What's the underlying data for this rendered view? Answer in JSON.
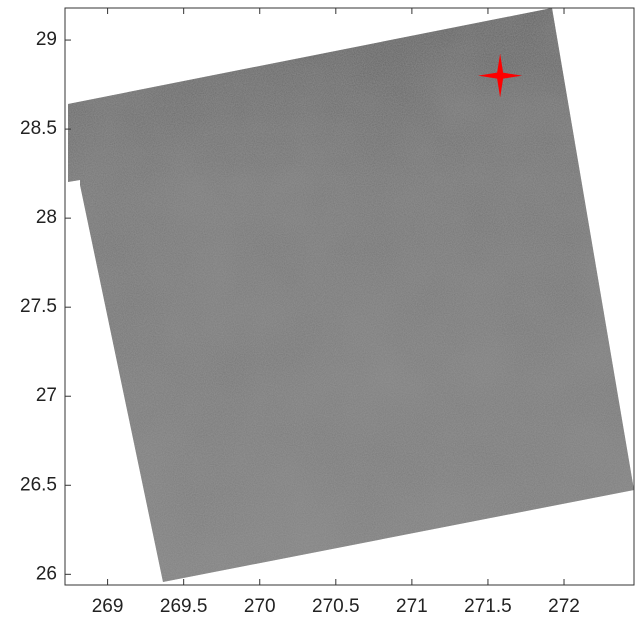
{
  "chart_data": {
    "type": "image",
    "xlim": [
      268.72,
      272.46
    ],
    "ylim": [
      25.94,
      29.18
    ],
    "xticks": [
      269,
      269.5,
      270,
      270.5,
      271,
      271.5,
      272
    ],
    "yticks": [
      26,
      26.5,
      27,
      27.5,
      28,
      28.5,
      29
    ],
    "marker": {
      "x": 271.58,
      "y": 28.8,
      "color": "#ff0000"
    }
  }
}
